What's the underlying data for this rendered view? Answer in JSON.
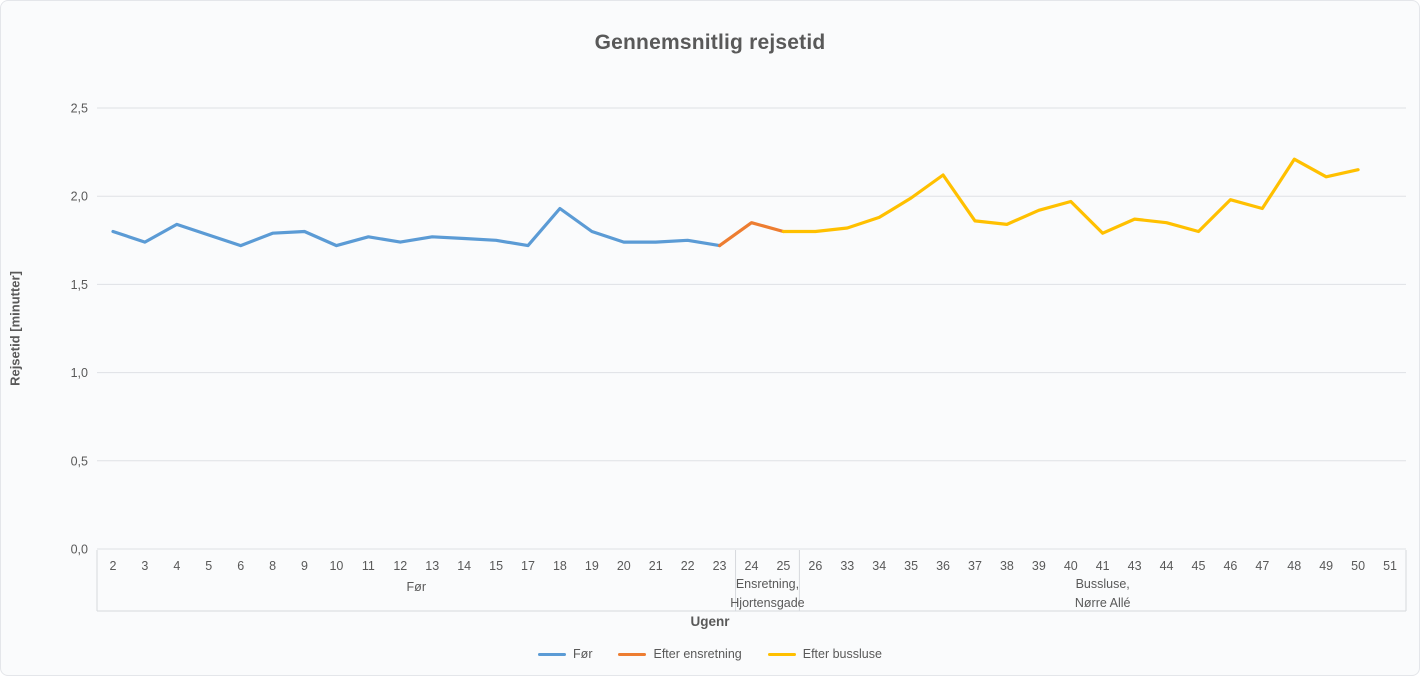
{
  "chart_data": {
    "type": "line",
    "title": "Gennemsnitlig rejsetid",
    "xlabel": "Ugenr",
    "ylabel": "Rejsetid [minutter]",
    "ylim": [
      0,
      2.5
    ],
    "y_ticks": [
      0,
      0.5,
      1.0,
      1.5,
      2.0,
      2.5
    ],
    "y_tick_labels": [
      "0,0",
      "0,5",
      "1,0",
      "1,5",
      "2,0",
      "2,5"
    ],
    "grid": "horizontal",
    "legend_position": "bottom",
    "categories": [
      "2",
      "3",
      "4",
      "5",
      "6",
      "8",
      "9",
      "10",
      "11",
      "12",
      "13",
      "14",
      "15",
      "17",
      "18",
      "19",
      "20",
      "21",
      "22",
      "23",
      "24",
      "25",
      "26",
      "33",
      "34",
      "35",
      "36",
      "37",
      "38",
      "39",
      "40",
      "41",
      "43",
      "44",
      "45",
      "46",
      "47",
      "48",
      "49",
      "50",
      "51"
    ],
    "category_groups": [
      {
        "lines": [
          "Før"
        ],
        "start": 0,
        "end": 19
      },
      {
        "lines": [
          "Ensretning,",
          "Hjortensgade"
        ],
        "start": 20,
        "end": 21
      },
      {
        "lines": [
          "Bussluse,",
          "Nørre Allé"
        ],
        "start": 22,
        "end": 40
      }
    ],
    "series": [
      {
        "name": "Før",
        "color": "#5B9BD5",
        "values": [
          1.8,
          1.74,
          1.84,
          1.78,
          1.72,
          1.79,
          1.8,
          1.72,
          1.77,
          1.74,
          1.77,
          1.76,
          1.75,
          1.72,
          1.93,
          1.8,
          1.74,
          1.74,
          1.75,
          1.72,
          null,
          null,
          null,
          null,
          null,
          null,
          null,
          null,
          null,
          null,
          null,
          null,
          null,
          null,
          null,
          null,
          null,
          null,
          null,
          null,
          null
        ]
      },
      {
        "name": "Efter ensretning",
        "color": "#ED7D31",
        "values": [
          null,
          null,
          null,
          null,
          null,
          null,
          null,
          null,
          null,
          null,
          null,
          null,
          null,
          null,
          null,
          null,
          null,
          null,
          null,
          1.72,
          1.85,
          1.8,
          null,
          null,
          null,
          null,
          null,
          null,
          null,
          null,
          null,
          null,
          null,
          null,
          null,
          null,
          null,
          null,
          null,
          null,
          null
        ]
      },
      {
        "name": "Efter bussluse",
        "color": "#FFC000",
        "values": [
          null,
          null,
          null,
          null,
          null,
          null,
          null,
          null,
          null,
          null,
          null,
          null,
          null,
          null,
          null,
          null,
          null,
          null,
          null,
          null,
          null,
          1.8,
          1.8,
          1.82,
          1.88,
          1.99,
          2.12,
          1.86,
          1.84,
          1.92,
          1.97,
          1.79,
          1.87,
          1.85,
          1.8,
          1.98,
          1.93,
          2.21,
          2.11,
          2.15,
          null
        ]
      }
    ]
  },
  "colors": {
    "grid": "#dfe1e5",
    "axis": "#d6d9dd",
    "text": "#595959"
  }
}
